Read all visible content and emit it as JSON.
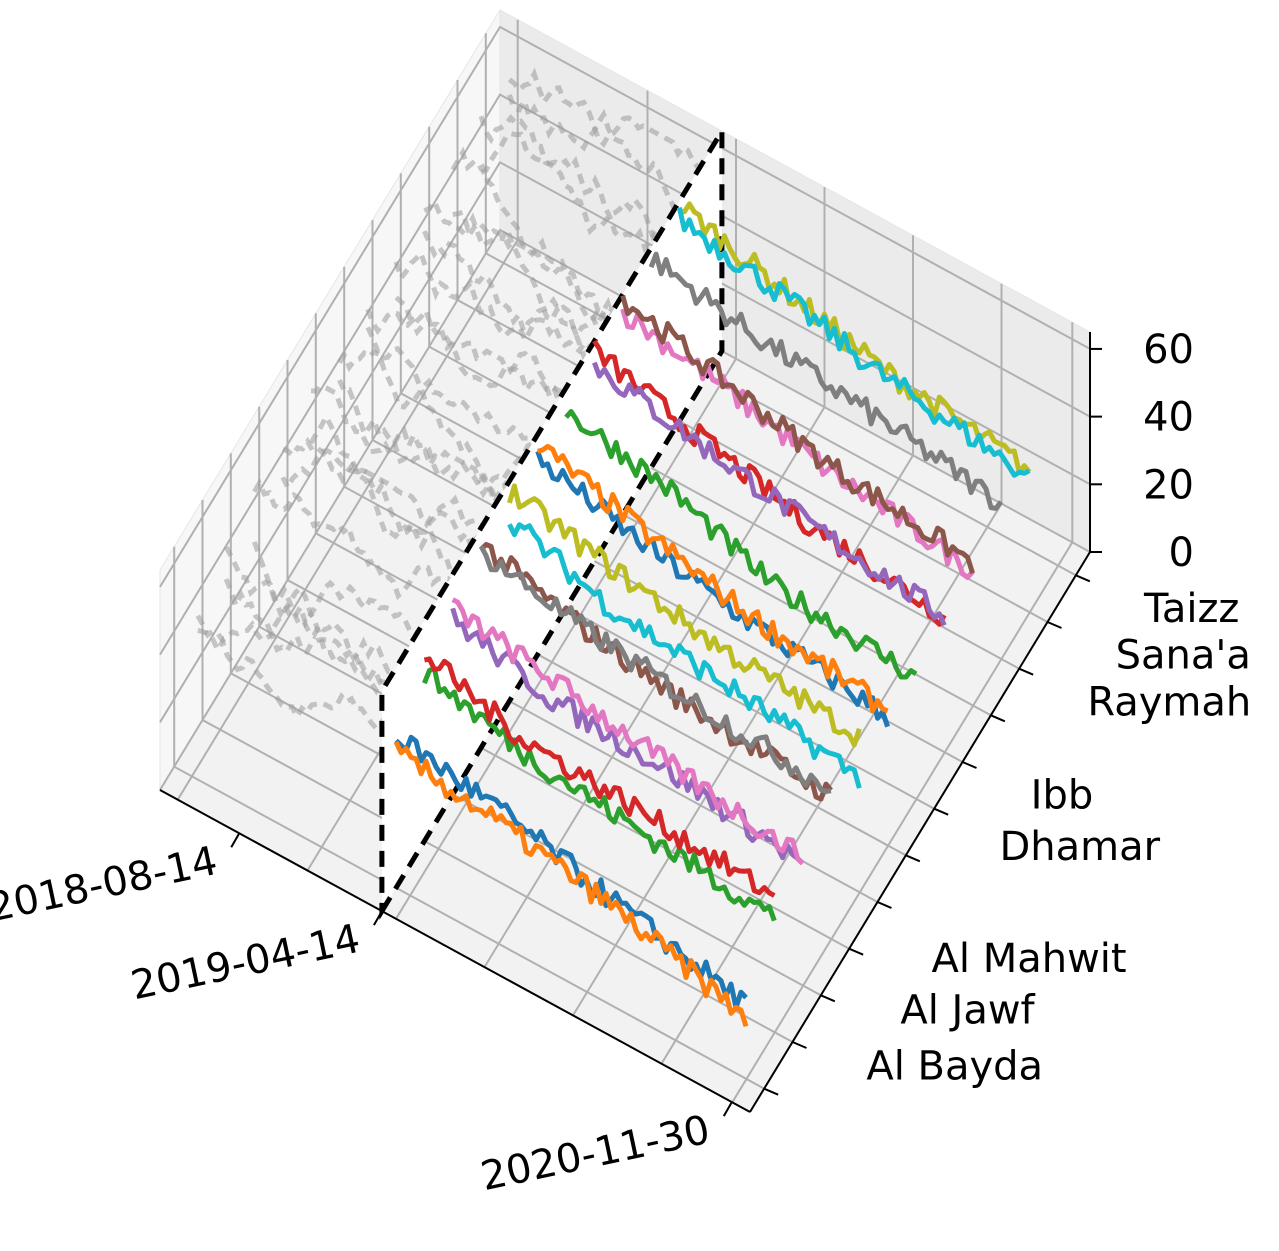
{
  "chart_data": {
    "type": "line",
    "projection": "3d",
    "title": "",
    "xlabel": "",
    "ylabel": "",
    "zlabel": "",
    "x_type": "date",
    "x_ticks": [
      "2018-08-14",
      "2019-04-14",
      "2020-11-30"
    ],
    "xlim": [
      "2018-04-01",
      "2020-12-31"
    ],
    "x_split": "2019-04-14",
    "y_ticks": [
      "Al Bayda",
      "Al Jawf",
      "Al Mahwit",
      "Dhamar",
      "Ibb",
      "Raymah",
      "Sana'a",
      "Taizz"
    ],
    "z_ticks": [
      "0",
      "20",
      "40",
      "60"
    ],
    "zlim": [
      0,
      65
    ],
    "grid": true,
    "legend": "none",
    "history_style": "grey dashed (before split)",
    "forecast_style": "solid colored (after split)",
    "colors": [
      "#1f77b4",
      "#ff7f0e",
      "#2ca02c",
      "#d62728",
      "#9467bd",
      "#8c564b",
      "#e377c2",
      "#7f7f7f",
      "#bcbd22",
      "#17becf"
    ],
    "series": [
      {
        "row": 0,
        "color": "#1f77b4",
        "x": [
          "2019-04-14",
          "2019-10-01",
          "2020-04-01",
          "2020-11-30"
        ],
        "y": [
          45,
          40,
          32,
          22
        ]
      },
      {
        "row": 0,
        "color": "#ff7f0e",
        "x": [
          "2019-04-14",
          "2019-10-01",
          "2020-04-01",
          "2020-11-30"
        ],
        "y": [
          40,
          36,
          30,
          18
        ]
      },
      {
        "row": 1,
        "color": "#2ca02c",
        "x": [
          "2019-04-14",
          "2019-10-01",
          "2020-04-01",
          "2020-11-30"
        ],
        "y": [
          50,
          42,
          38,
          34
        ]
      },
      {
        "row": 1,
        "color": "#d62728",
        "x": [
          "2019-04-14",
          "2019-10-01",
          "2020-04-01",
          "2020-11-30"
        ],
        "y": [
          55,
          46,
          44,
          40
        ]
      },
      {
        "row": 2,
        "color": "#9467bd",
        "x": [
          "2019-04-14",
          "2019-10-01",
          "2020-04-01",
          "2020-11-30"
        ],
        "y": [
          52,
          44,
          42,
          36
        ]
      },
      {
        "row": 2,
        "color": "#e377c2",
        "x": [
          "2019-04-14",
          "2019-10-01",
          "2020-04-01",
          "2020-11-30"
        ],
        "y": [
          55,
          50,
          44,
          38
        ]
      },
      {
        "row": 3,
        "color": "#8c564b",
        "x": [
          "2019-04-14",
          "2019-10-01",
          "2020-04-01",
          "2020-11-30"
        ],
        "y": [
          60,
          52,
          46,
          42
        ]
      },
      {
        "row": 3,
        "color": "#7f7f7f",
        "x": [
          "2019-04-14",
          "2019-10-01",
          "2020-04-01",
          "2020-11-30"
        ],
        "y": [
          58,
          52,
          48,
          44
        ]
      },
      {
        "row": 4,
        "color": "#bcbd22",
        "x": [
          "2019-04-14",
          "2019-10-01",
          "2020-04-01",
          "2020-11-30"
        ],
        "y": [
          62,
          56,
          50,
          46
        ]
      },
      {
        "row": 4,
        "color": "#17becf",
        "x": [
          "2019-04-14",
          "2019-10-01",
          "2020-04-01",
          "2020-11-30"
        ],
        "y": [
          54,
          44,
          40,
          34
        ]
      },
      {
        "row": 5,
        "color": "#1f77b4",
        "x": [
          "2019-04-14",
          "2019-10-01",
          "2020-04-01",
          "2020-11-30"
        ],
        "y": [
          58,
          50,
          44,
          38
        ]
      },
      {
        "row": 5,
        "color": "#ff7f0e",
        "x": [
          "2019-04-14",
          "2019-10-01",
          "2020-04-01",
          "2020-11-30"
        ],
        "y": [
          62,
          54,
          46,
          40
        ]
      },
      {
        "row": 6,
        "color": "#2ca02c",
        "x": [
          "2019-04-14",
          "2019-10-01",
          "2020-04-01",
          "2020-11-30"
        ],
        "y": [
          58,
          52,
          40,
          36
        ]
      },
      {
        "row": 7,
        "color": "#d62728",
        "x": [
          "2019-04-14",
          "2019-10-01",
          "2020-04-01",
          "2020-11-30"
        ],
        "y": [
          62,
          54,
          46,
          40
        ]
      },
      {
        "row": 7,
        "color": "#9467bd",
        "x": [
          "2019-04-14",
          "2019-10-01",
          "2020-04-01",
          "2020-11-30"
        ],
        "y": [
          58,
          52,
          46,
          40
        ]
      },
      {
        "row": 8,
        "color": "#e377c2",
        "x": [
          "2019-04-14",
          "2019-10-01",
          "2020-04-01",
          "2020-11-30"
        ],
        "y": [
          60,
          54,
          46,
          40
        ]
      },
      {
        "row": 8,
        "color": "#8c564b",
        "x": [
          "2019-04-14",
          "2019-10-01",
          "2020-04-01",
          "2020-11-30"
        ],
        "y": [
          64,
          56,
          48,
          42
        ]
      },
      {
        "row": 9,
        "color": "#7f7f7f",
        "x": [
          "2019-04-14",
          "2019-10-01",
          "2020-04-01",
          "2020-11-30"
        ],
        "y": [
          62,
          56,
          52,
          46
        ]
      },
      {
        "row": 10,
        "color": "#bcbd22",
        "x": [
          "2019-04-14",
          "2019-10-01",
          "2020-04-01",
          "2020-11-30"
        ],
        "y": [
          64,
          56,
          48,
          42
        ]
      },
      {
        "row": 10,
        "color": "#17becf",
        "x": [
          "2019-04-14",
          "2019-10-01",
          "2020-04-01",
          "2020-11-30"
        ],
        "y": [
          60,
          54,
          46,
          40
        ]
      }
    ]
  }
}
